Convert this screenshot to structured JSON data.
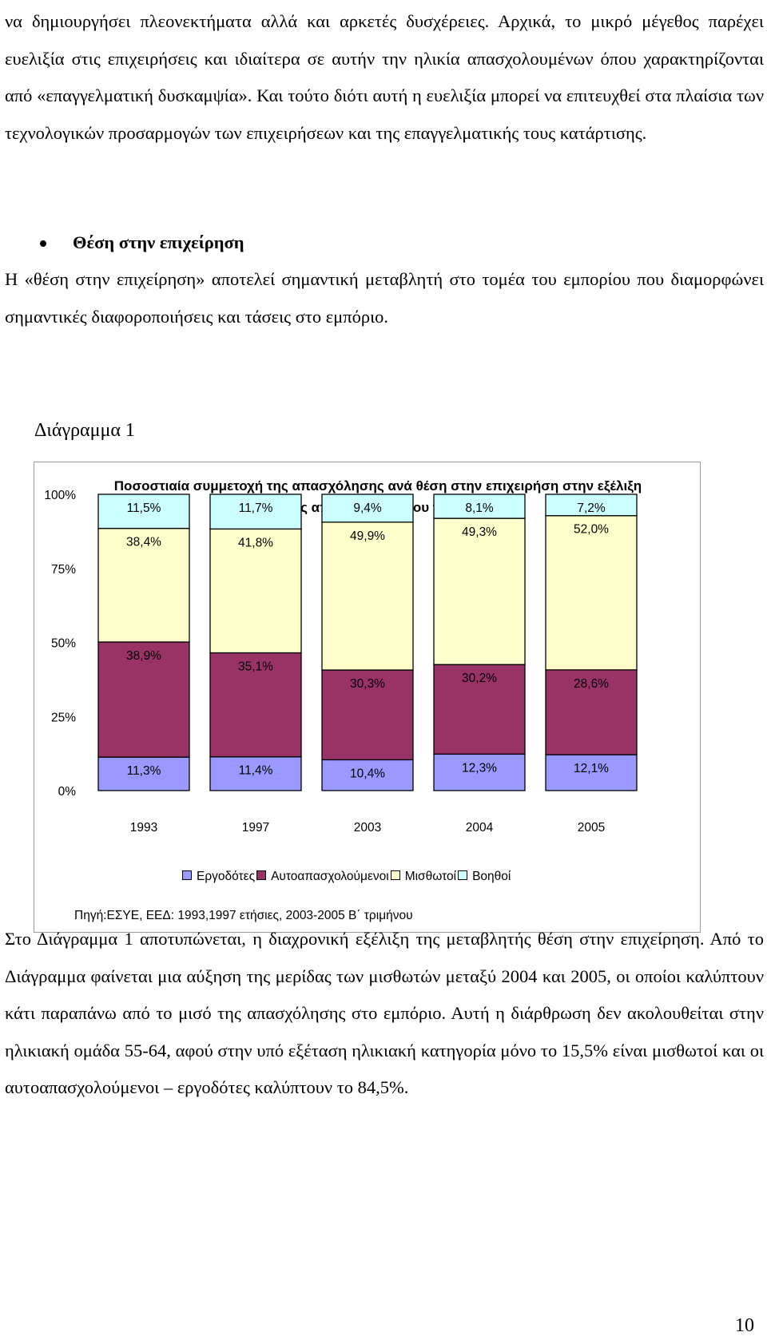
{
  "paragraphs": {
    "top": "να δημιουργήσει πλεονεκτήματα αλλά και αρκετές δυσχέρειες. Αρχικά, το μικρό μέγεθος παρέχει ευελιξία στις επιχειρήσεις και ιδιαίτερα σε αυτήν την ηλικία απασχολουμένων όπου χαρακτηρίζονται από «επαγγελματική δυσκαμψία». Και τούτο διότι αυτή η ευελιξία μπορεί να επιτευχθεί στα πλαίσια των τεχνολογικών προσαρμογών των επιχειρήσεων και της επαγγελματικής τους κατάρτισης.",
    "bullet_heading": "Θέση στην επιχείρηση",
    "section": "Η «θέση στην επιχείρηση» αποτελεί σημαντική μεταβλητή στο τομέα του εμπορίου που διαμορφώνει σημαντικές διαφοροποιήσεις και τάσεις στο εμπόριο.",
    "bottom": "Στο Διάγραμμα 1 αποτυπώνεται, η διαχρονική εξέλιξη της μεταβλητής θέση στην επιχείρηση. Από το Διάγραμμα φαίνεται μια αύξηση της μερίδας των μισθωτών μεταξύ 2004 και 2005, οι οποίοι καλύπτουν κάτι παραπάνω από το μισό της απασχόλησης στο εμπόριο. Αυτή η  διάρθρωση δεν ακολουθείται στην ηλικιακή ομάδα 55-64, αφού στην υπό εξέταση ηλικιακή κατηγορία μόνο το 15,5% είναι μισθωτοί και οι αυτοαπασχολούμενοι – εργοδότες καλύπτουν το 84,5%."
  },
  "figure": {
    "caption": "Διάγραμμα 1",
    "source": "Πηγή:ΕΣΥΕ, ΕΕΔ: 1993,1997 ετήσιες, 2003-2005 Β΄ τριμήνου"
  },
  "chart_data": {
    "type": "bar",
    "stacked": true,
    "percent_stacked": true,
    "title": "Ποσοστιαία συμμετοχή της απασχόλησης ανά θέση στην επιχειρήση στην εξέλιξη της απασχόλησης του τομέα",
    "categories": [
      "1993",
      "1997",
      "2003",
      "2004",
      "2005"
    ],
    "y_ticks": [
      "0%",
      "25%",
      "50%",
      "75%",
      "100%"
    ],
    "ylim": [
      0,
      100
    ],
    "grid": false,
    "legend_position": "bottom",
    "series": [
      {
        "name": "Εργοδότες",
        "color": "#9999ff",
        "values": [
          11.3,
          11.4,
          10.4,
          12.3,
          12.1
        ],
        "labels": [
          "11,3%",
          "11,4%",
          "10,4%",
          "12,3%",
          "12,1%"
        ]
      },
      {
        "name": "Αυτοαπασχολούμενοι",
        "color": "#993366",
        "values": [
          38.9,
          35.1,
          30.3,
          30.2,
          28.6
        ],
        "labels": [
          "38,9%",
          "35,1%",
          "30,3%",
          "30,2%",
          "28,6%"
        ]
      },
      {
        "name": "Μισθωτοί",
        "color": "#ffffcc",
        "values": [
          38.4,
          41.8,
          49.9,
          49.3,
          52.0
        ],
        "labels": [
          "38,4%",
          "41,8%",
          "49,9%",
          "49,3%",
          "52,0%"
        ]
      },
      {
        "name": "Βοηθοί",
        "color": "#ccffff",
        "values": [
          11.5,
          11.7,
          9.4,
          8.1,
          7.2
        ],
        "labels": [
          "11,5%",
          "11,7%",
          "9,4%",
          "8,1%",
          "7,2%"
        ]
      }
    ]
  },
  "page_number": "10"
}
